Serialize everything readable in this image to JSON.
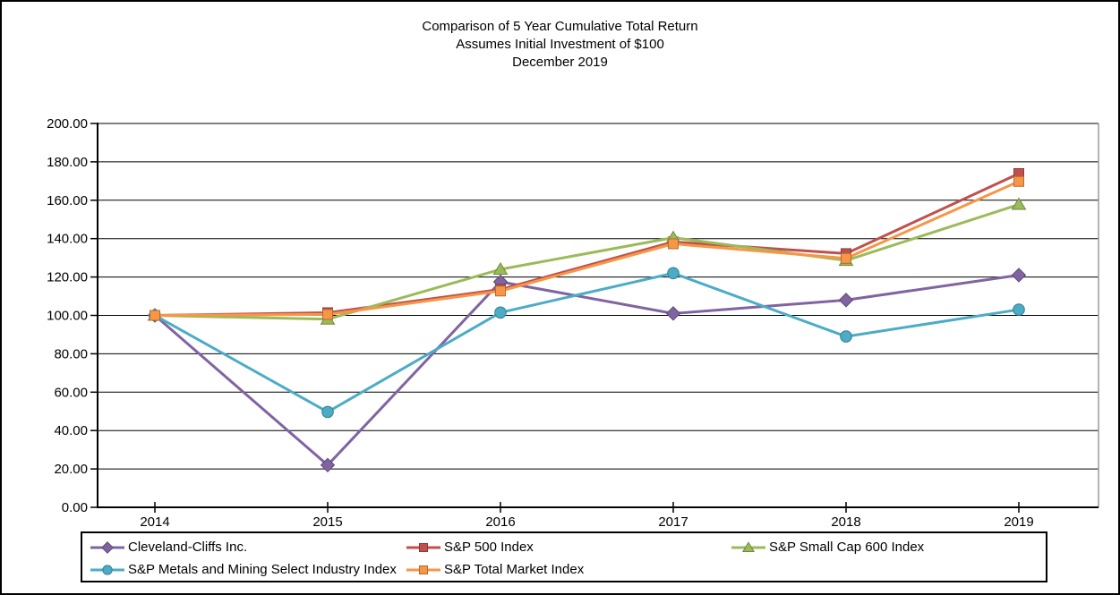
{
  "page": {
    "background": "#FFFFFF",
    "border_color": "#000000"
  },
  "title": {
    "line1": "Comparison of 5 Year Cumulative Total Return",
    "line2": "Assumes Initial Investment of $100",
    "line3": "December 2019"
  },
  "chart_data": {
    "type": "line",
    "title": "Comparison of 5 Year Cumulative Total Return",
    "subtitle": "Assumes Initial Investment of $100",
    "subtitle2": "December 2019",
    "categories": [
      "2014",
      "2015",
      "2016",
      "2017",
      "2018",
      "2019"
    ],
    "series": [
      {
        "name": "Cleveland-Cliffs Inc.",
        "marker": "diamond",
        "color": "#8064A2",
        "values": [
          100.0,
          22.0,
          117.5,
          101.0,
          108.0,
          121.0
        ]
      },
      {
        "name": "S&P 500 Index",
        "marker": "square",
        "color": "#C0504D",
        "values": [
          100.0,
          101.4,
          113.5,
          138.3,
          132.2,
          173.9
        ]
      },
      {
        "name": "S&P Small Cap 600 Index",
        "marker": "triangle",
        "color": "#9BBB59",
        "values": [
          100.0,
          98.0,
          124.0,
          140.5,
          128.6,
          157.8
        ]
      },
      {
        "name": "S&P Metals and Mining Select Industry Index",
        "marker": "circle",
        "color": "#4BACC6",
        "values": [
          100.0,
          49.7,
          101.5,
          122.0,
          89.0,
          103.0
        ]
      },
      {
        "name": "S&P Total Market Index",
        "marker": "square",
        "color": "#F79646",
        "values": [
          100.0,
          100.5,
          112.7,
          137.3,
          129.7,
          169.8
        ]
      }
    ],
    "ylim": [
      0,
      200
    ],
    "ytick_values": [
      0,
      20,
      40,
      60,
      80,
      100,
      120,
      140,
      160,
      180,
      200
    ],
    "yticks": [
      "0.00",
      "20.00",
      "40.00",
      "60.00",
      "80.00",
      "100.00",
      "120.00",
      "140.00",
      "160.00",
      "180.00",
      "200.00"
    ],
    "xlabel": "",
    "ylabel": "",
    "grid": "horizontal",
    "gridline_color": "#000000",
    "legend_position": "bottom-box"
  }
}
